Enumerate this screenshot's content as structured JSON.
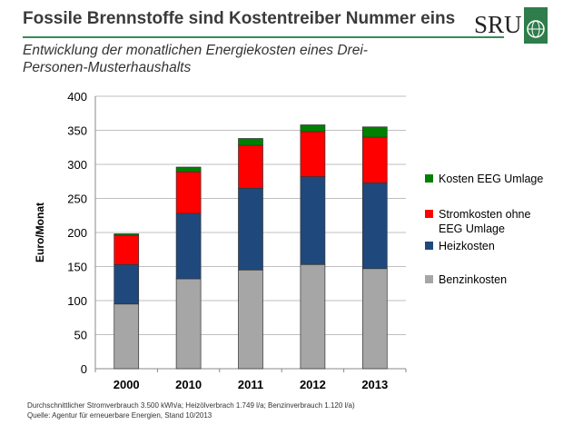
{
  "header": {
    "title": "Fossile Brennstoffe sind Kostentreiber Nummer eins",
    "subtitle": "Entwicklung der monatlichen Energiekosten eines Drei-Personen-Musterhaushalts",
    "logo": "SRU"
  },
  "footnotes": [
    "Durchschnittlicher Stromverbrauch 3.500 kWh/a; Heizölverbrach 1.749 l/a; Benzinverbrauch 1.120 l/a)",
    "Quelle: Agentur für erneuerbare Energien, Stand 10/2013"
  ],
  "chart_data": {
    "type": "bar",
    "stacked": true,
    "categories": [
      "2000",
      "2010",
      "2011",
      "2012",
      "2013"
    ],
    "ylabel": "Euro/Monat",
    "xlabel": "",
    "ylim": [
      0,
      400
    ],
    "yticks": [
      0,
      50,
      100,
      150,
      200,
      250,
      300,
      350,
      400
    ],
    "grid": true,
    "legend_position": "right",
    "series": [
      {
        "name": "Benzinkosten",
        "color": "#a6a6a6",
        "values": [
          95,
          132,
          145,
          153,
          147
        ]
      },
      {
        "name": "Heizkosten",
        "color": "#1f497d",
        "values": [
          58,
          96,
          120,
          129,
          126
        ]
      },
      {
        "name": "Stromkosten ohne EEG Umlage",
        "color": "#ff0000",
        "values": [
          43,
          61,
          63,
          66,
          67
        ]
      },
      {
        "name": "Kosten EEG Umlage",
        "color": "#008000",
        "values": [
          2,
          7,
          10,
          10,
          15
        ]
      }
    ]
  }
}
